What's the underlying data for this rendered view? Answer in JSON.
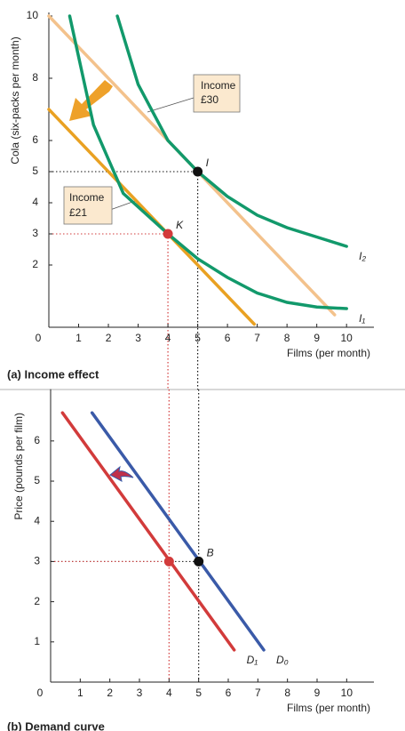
{
  "chart_data": [
    {
      "type": "line",
      "title": "(a) Income effect",
      "xlabel": "Films (per month)",
      "ylabel": "Cola (six-packs per month)",
      "xlim": [
        0,
        10.8
      ],
      "ylim": [
        0,
        10
      ],
      "xticks": [
        0,
        1,
        2,
        3,
        4,
        5,
        6,
        7,
        8,
        9,
        10
      ],
      "yticks": [
        2,
        3,
        4,
        5,
        6,
        8,
        10
      ],
      "series": [
        {
          "label": [
            "Income",
            "£30"
          ],
          "color": "#f3c28c",
          "x": [
            0,
            9.6
          ],
          "values": [
            10,
            0.4
          ]
        },
        {
          "label": [
            "Income",
            "£21"
          ],
          "color": "#e9a122",
          "x": [
            0,
            6.9
          ],
          "values": [
            7,
            0.1
          ]
        },
        {
          "label": "I₂",
          "color": "#12996b",
          "x": [
            2.3,
            3,
            4,
            5,
            6,
            7,
            8,
            9,
            10
          ],
          "values": [
            10,
            7.8,
            6,
            5,
            4.2,
            3.6,
            3.2,
            2.9,
            2.6
          ]
        },
        {
          "label": "I₁",
          "color": "#12996b",
          "x": [
            0.7,
            1.5,
            2.5,
            4,
            5,
            6,
            7,
            8,
            9,
            10
          ],
          "values": [
            10,
            6.5,
            4.3,
            3,
            2.2,
            1.6,
            1.1,
            0.8,
            0.65,
            0.6
          ]
        }
      ],
      "points": [
        {
          "label": "I",
          "x": 5,
          "y": 5,
          "color": "#111111",
          "guide_color": "#111111"
        },
        {
          "label": "K",
          "x": 4,
          "y": 3,
          "color": "#d23b3b",
          "guide_color": "#d23b3b"
        }
      ]
    },
    {
      "type": "line",
      "title": "(b) Demand curve",
      "xlabel": "Films (per month)",
      "ylabel": "Price (pounds per film)",
      "xlim": [
        0,
        10.8
      ],
      "ylim": [
        0,
        7.2
      ],
      "xticks": [
        0,
        1,
        2,
        3,
        4,
        5,
        6,
        7,
        8,
        9,
        10
      ],
      "yticks": [
        1,
        2,
        3,
        4,
        5,
        6
      ],
      "series": [
        {
          "label": "D₀",
          "color": "#3a5aa8",
          "x": [
            1.4,
            7.2
          ],
          "values": [
            6.7,
            0.8
          ]
        },
        {
          "label": "D₁",
          "color": "#d23b3b",
          "x": [
            0.4,
            6.2
          ],
          "values": [
            6.7,
            0.8
          ]
        }
      ],
      "points": [
        {
          "label": "B",
          "x": 5,
          "y": 3,
          "color": "#111111",
          "guide_color": "#111111"
        },
        {
          "x": 4,
          "y": 3,
          "color": "#d23b3b",
          "guide_color": "#d23b3b"
        }
      ]
    }
  ]
}
